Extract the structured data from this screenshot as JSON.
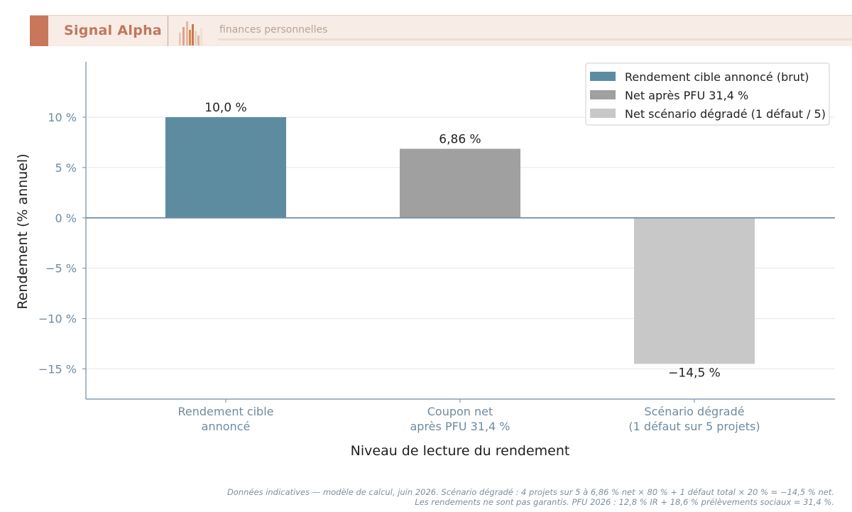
{
  "header": {
    "brand": "Signal Alpha",
    "tagline": "finances personnelles"
  },
  "colors": {
    "bar_announced": "#5d8ca0",
    "bar_net": "#a0a0a0",
    "bar_degraded": "#c8c8c8",
    "axis": "#6f8ba0",
    "zero_line": "#6f8ba0"
  },
  "chart_data": {
    "type": "bar",
    "categories": [
      [
        "Rendement cible",
        "annoncé"
      ],
      [
        "Coupon net",
        "après PFU 31,4 %"
      ],
      [
        "Scénario dégradé",
        "(1 défaut sur 5 projets)"
      ]
    ],
    "values": [
      10.0,
      6.86,
      -14.5
    ],
    "value_labels": [
      "10,0 %",
      "6,86 %",
      "−14,5 %"
    ],
    "legend": [
      "Rendement cible annoncé (brut)",
      "Net après PFU 31,4 %",
      "Net scénario dégradé (1 défaut / 5)"
    ],
    "legend_position": "top-right",
    "xlabel": "Niveau de lecture du rendement",
    "ylabel": "Rendement (% annuel)",
    "ylim": [
      -18,
      15.5
    ],
    "yticks": [
      10,
      5,
      0,
      -5,
      -10,
      -15
    ],
    "ytick_labels": [
      "10 %",
      "5 %",
      "0 %",
      "−5 %",
      "−10 %",
      "−15 %"
    ],
    "grid": "horizontal"
  },
  "footnote": [
    "Données indicatives — modèle de calcul, juin 2026. Scénario dégradé : 4 projets sur 5 à 6,86 % net × 80 % + 1 défaut total × 20 % = −14,5 % net.",
    "Les rendements ne sont pas garantis. PFU 2026 : 12,8 % IR + 18,6 % prélèvements sociaux = 31,4 %."
  ]
}
